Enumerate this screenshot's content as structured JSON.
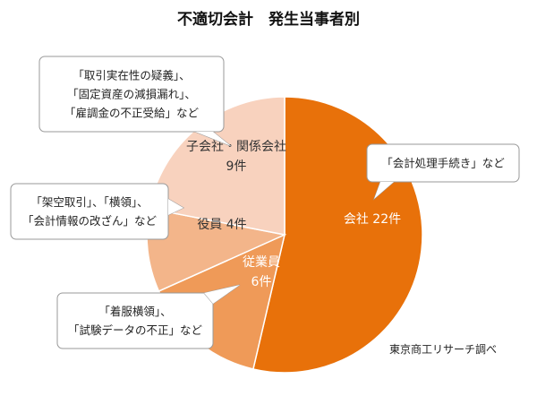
{
  "chart_data": {
    "type": "pie",
    "title": "不適切会計　発生当事者別",
    "slices": [
      {
        "category": "会社",
        "value": 22,
        "label": "会社 22件",
        "color": "#E8710A"
      },
      {
        "category": "従業員",
        "value": 6,
        "label_lines": [
          "従業員",
          "6件"
        ],
        "color": "#EF9A58"
      },
      {
        "category": "役員",
        "value": 4,
        "label": "役員 4件",
        "color": "#F3B58A"
      },
      {
        "category": "子会社・関係会社",
        "value": 9,
        "label_lines": [
          "子会社・関係会社",
          "9件"
        ],
        "color": "#F8D2BE"
      }
    ],
    "callouts": [
      {
        "target": "会社",
        "lines": [
          "「会計処理手続き」など"
        ]
      },
      {
        "target": "子会社・関係会社",
        "lines": [
          "「取引実在性の疑義」、",
          "「固定資産の減損漏れ」、",
          "「雇調金の不正受給」など"
        ]
      },
      {
        "target": "役員",
        "lines": [
          "「架空取引」、「横領」、",
          "「会計情報の改ざん」など"
        ]
      },
      {
        "target": "従業員",
        "lines": [
          "「着服横領」、",
          "「試験データの不正」など"
        ]
      }
    ],
    "source": "東京商工リサーチ調べ"
  }
}
